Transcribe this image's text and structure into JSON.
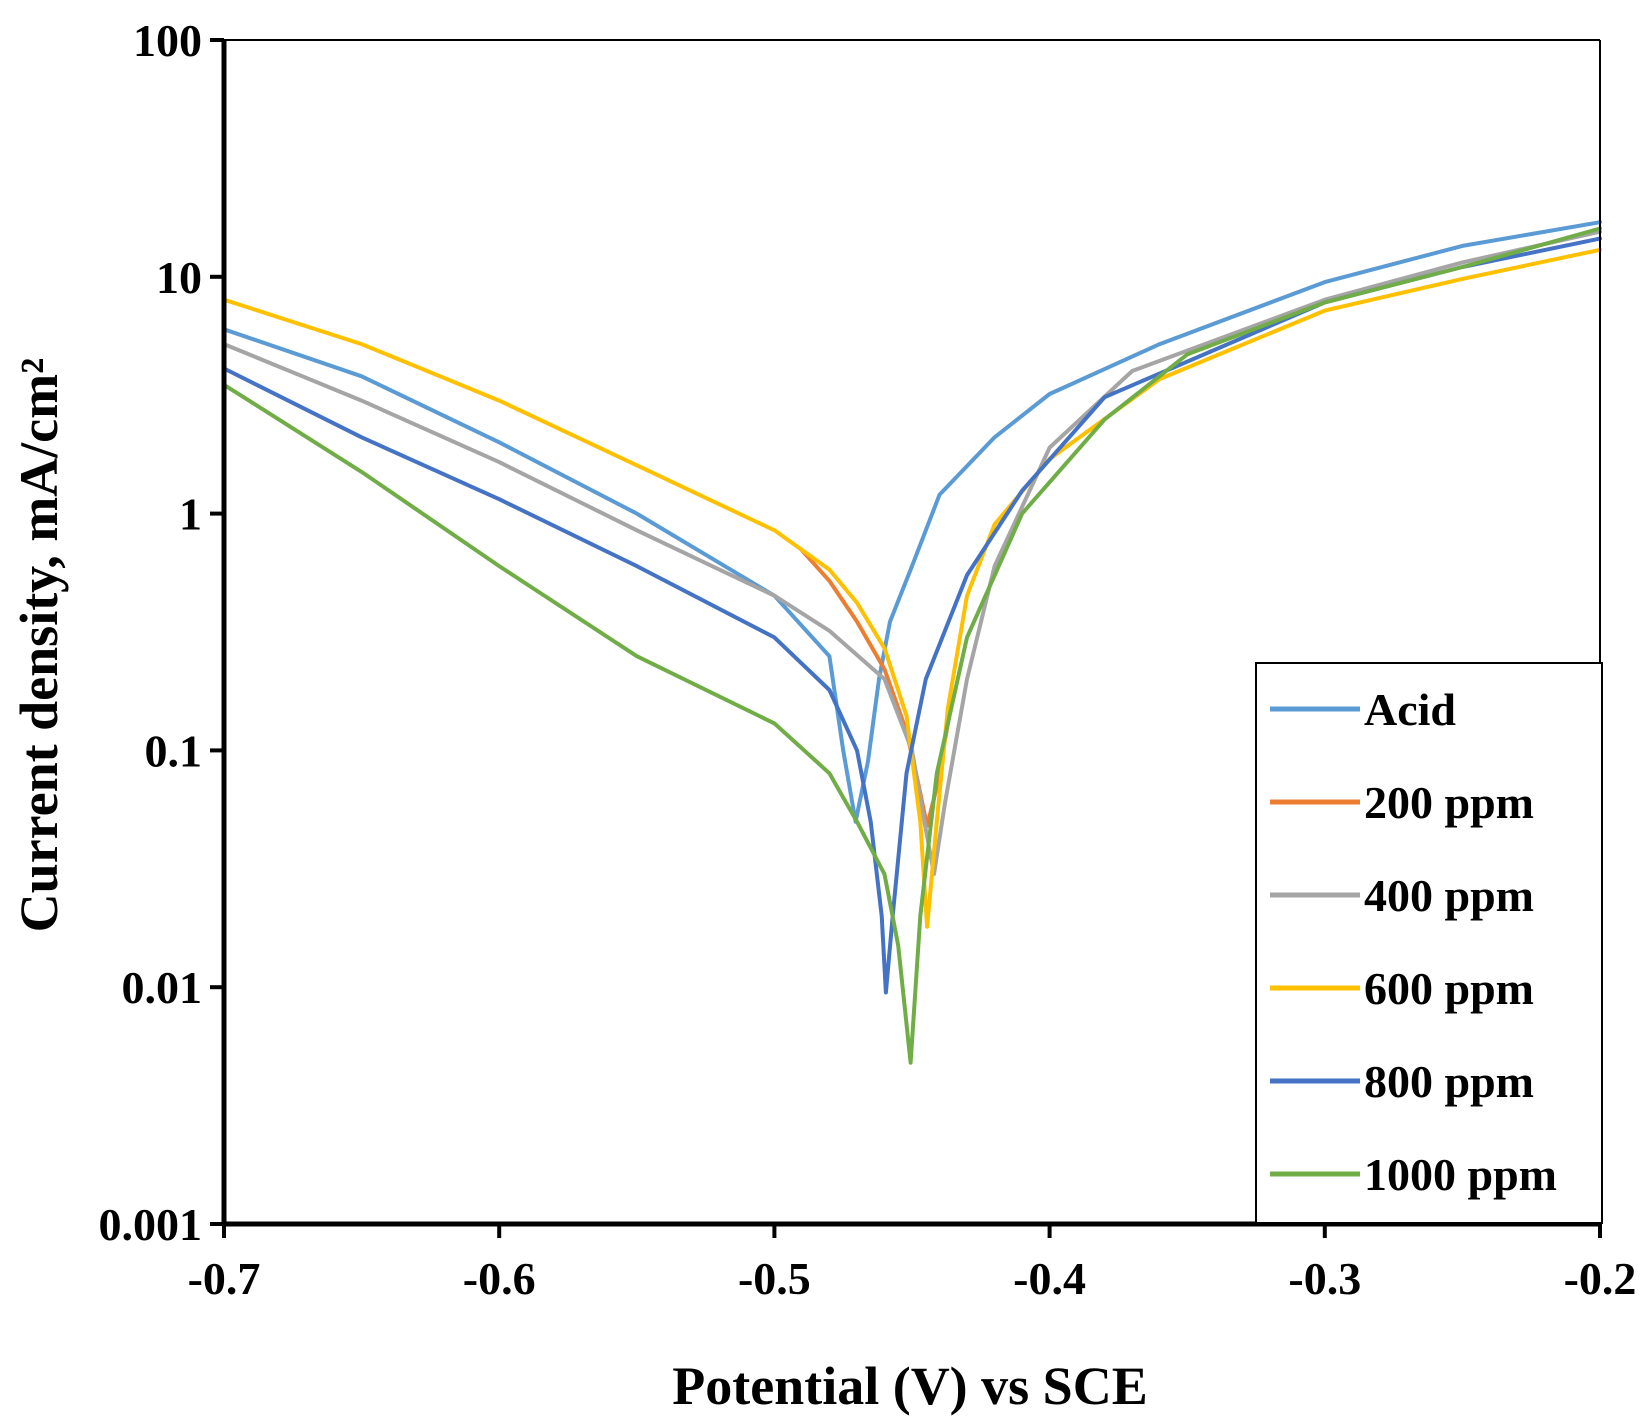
{
  "chart_data": {
    "type": "line",
    "title": "",
    "xlabel": "Potential (V) vs SCE",
    "ylabel": "Current density, mA/cm²",
    "xlim": [
      -0.7,
      -0.2
    ],
    "ylim": [
      0.001,
      100
    ],
    "yscale": "log",
    "x_ticks": [
      "-0.7",
      "-0.6",
      "-0.5",
      "-0.4",
      "-0.3",
      "-0.2"
    ],
    "x_tick_values": [
      -0.7,
      -0.6,
      -0.5,
      -0.4,
      -0.3,
      -0.2
    ],
    "y_ticks": [
      "0.001",
      "0.01",
      "0.1",
      "1",
      "10",
      "100"
    ],
    "y_tick_values": [
      0.001,
      0.01,
      0.1,
      1,
      10,
      100
    ],
    "grid": false,
    "legend_position": "bottom-right",
    "series": [
      {
        "name": "Acid",
        "color": "#5b9bd5",
        "points": [
          [
            -0.7,
            6.0
          ],
          [
            -0.65,
            3.8
          ],
          [
            -0.6,
            2.0
          ],
          [
            -0.55,
            1.0
          ],
          [
            -0.5,
            0.45
          ],
          [
            -0.48,
            0.25
          ],
          [
            -0.475,
            0.1
          ],
          [
            -0.4705,
            0.05
          ],
          [
            -0.466,
            0.09
          ],
          [
            -0.462,
            0.2
          ],
          [
            -0.458,
            0.35
          ],
          [
            -0.45,
            0.6
          ],
          [
            -0.44,
            1.2
          ],
          [
            -0.42,
            2.1
          ],
          [
            -0.4,
            3.2
          ],
          [
            -0.36,
            5.2
          ],
          [
            -0.3,
            9.5
          ],
          [
            -0.25,
            13.5
          ],
          [
            -0.2,
            17.0
          ]
        ]
      },
      {
        "name": "200 ppm",
        "color": "#ed7d31",
        "points": [
          [
            -0.49,
            0.7
          ],
          [
            -0.48,
            0.52
          ],
          [
            -0.47,
            0.35
          ],
          [
            -0.46,
            0.22
          ],
          [
            -0.452,
            0.12
          ],
          [
            -0.448,
            0.075
          ],
          [
            -0.4445,
            0.048
          ],
          [
            -0.441,
            0.07
          ],
          [
            -0.436,
            0.15
          ]
        ]
      },
      {
        "name": "400 ppm",
        "color": "#a5a5a5",
        "points": [
          [
            -0.7,
            5.2
          ],
          [
            -0.65,
            3.0
          ],
          [
            -0.6,
            1.65
          ],
          [
            -0.55,
            0.85
          ],
          [
            -0.5,
            0.45
          ],
          [
            -0.48,
            0.32
          ],
          [
            -0.46,
            0.2
          ],
          [
            -0.45,
            0.1
          ],
          [
            -0.4455,
            0.05
          ],
          [
            -0.442,
            0.03
          ],
          [
            -0.438,
            0.06
          ],
          [
            -0.43,
            0.2
          ],
          [
            -0.42,
            0.6
          ],
          [
            -0.4,
            1.9
          ],
          [
            -0.37,
            4.0
          ],
          [
            -0.3,
            8.0
          ],
          [
            -0.25,
            11.5
          ],
          [
            -0.2,
            15.5
          ]
        ]
      },
      {
        "name": "600 ppm",
        "color": "#ffc000",
        "points": [
          [
            -0.7,
            8.0
          ],
          [
            -0.65,
            5.2
          ],
          [
            -0.6,
            3.0
          ],
          [
            -0.55,
            1.6
          ],
          [
            -0.5,
            0.85
          ],
          [
            -0.48,
            0.58
          ],
          [
            -0.47,
            0.42
          ],
          [
            -0.46,
            0.27
          ],
          [
            -0.452,
            0.14
          ],
          [
            -0.447,
            0.05
          ],
          [
            -0.4445,
            0.018
          ],
          [
            -0.441,
            0.05
          ],
          [
            -0.437,
            0.15
          ],
          [
            -0.43,
            0.45
          ],
          [
            -0.42,
            0.9
          ],
          [
            -0.4,
            1.7
          ],
          [
            -0.36,
            3.7
          ],
          [
            -0.3,
            7.2
          ],
          [
            -0.25,
            9.8
          ],
          [
            -0.2,
            13.0
          ]
        ]
      },
      {
        "name": "800 ppm",
        "color": "#4472c4",
        "points": [
          [
            -0.7,
            4.1
          ],
          [
            -0.65,
            2.1
          ],
          [
            -0.6,
            1.15
          ],
          [
            -0.55,
            0.6
          ],
          [
            -0.5,
            0.3
          ],
          [
            -0.48,
            0.18
          ],
          [
            -0.47,
            0.1
          ],
          [
            -0.465,
            0.05
          ],
          [
            -0.461,
            0.02
          ],
          [
            -0.4595,
            0.0095
          ],
          [
            -0.457,
            0.02
          ],
          [
            -0.452,
            0.08
          ],
          [
            -0.445,
            0.2
          ],
          [
            -0.43,
            0.55
          ],
          [
            -0.41,
            1.25
          ],
          [
            -0.38,
            3.1
          ],
          [
            -0.3,
            7.8
          ],
          [
            -0.25,
            11.0
          ],
          [
            -0.2,
            14.5
          ]
        ]
      },
      {
        "name": "1000 ppm",
        "color": "#70ad47",
        "points": [
          [
            -0.7,
            3.5
          ],
          [
            -0.65,
            1.5
          ],
          [
            -0.6,
            0.6
          ],
          [
            -0.55,
            0.25
          ],
          [
            -0.5,
            0.13
          ],
          [
            -0.48,
            0.08
          ],
          [
            -0.47,
            0.05
          ],
          [
            -0.46,
            0.03
          ],
          [
            -0.455,
            0.015
          ],
          [
            -0.4505,
            0.0048
          ],
          [
            -0.447,
            0.02
          ],
          [
            -0.441,
            0.08
          ],
          [
            -0.43,
            0.3
          ],
          [
            -0.41,
            1.0
          ],
          [
            -0.38,
            2.5
          ],
          [
            -0.35,
            4.7
          ],
          [
            -0.3,
            7.8
          ],
          [
            -0.25,
            11.0
          ],
          [
            -0.2,
            16.0
          ]
        ]
      }
    ]
  }
}
